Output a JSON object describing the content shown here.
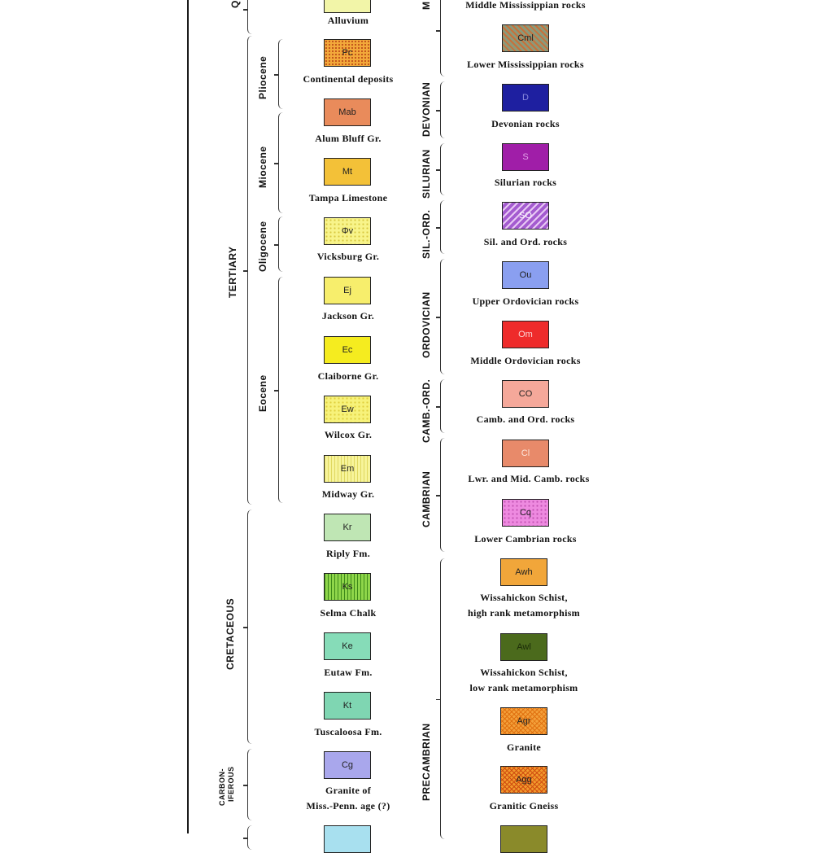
{
  "legend": {
    "units": [
      {
        "symbol": "",
        "name": "Alluvium",
        "fill": "#f2f5a8"
      },
      {
        "symbol": "Pc",
        "name": "Continental deposits",
        "fill": "#f2a83a"
      },
      {
        "symbol": "Mab",
        "name": "Alum Bluff Gr.",
        "fill": "#e98b5b"
      },
      {
        "symbol": "Mt",
        "name": "Tampa Limestone",
        "fill": "#f3c138"
      },
      {
        "symbol": "Φv",
        "name": "Vicksburg Gr.",
        "fill": "#f8f48a"
      },
      {
        "symbol": "Ej",
        "name": "Jackson Gr.",
        "fill": "#f7ee6c"
      },
      {
        "symbol": "Ec",
        "name": "Claiborne Gr.",
        "fill": "#f5ec1f"
      },
      {
        "symbol": "Ew",
        "name": "Wilcox Gr.",
        "fill": "#f7f27a"
      },
      {
        "symbol": "Em",
        "name": "Midway Gr.",
        "fill": "#f7f49a"
      },
      {
        "symbol": "Kr",
        "name": "Riply Fm.",
        "fill": "#bfe6b4"
      },
      {
        "symbol": "Ks",
        "name": "Selma Chalk",
        "fill": "#8fd64a"
      },
      {
        "symbol": "Ke",
        "name": "Eutaw Fm.",
        "fill": "#86dcb8"
      },
      {
        "symbol": "Kt",
        "name": "Tuscaloosa Fm.",
        "fill": "#7fd6b2"
      },
      {
        "symbol": "Cg",
        "name": "Granite of",
        "name2": "Miss.-Penn. age (?)",
        "fill": "#a9a7ec"
      },
      {
        "symbol": "",
        "name": "",
        "fill": "#a8e0ef"
      },
      {
        "symbol": "",
        "name": "Middle Mississippian rocks",
        "fill": ""
      },
      {
        "symbol": "Cml",
        "name": "Lower Mississippian rocks",
        "fill": "#8b9a7a"
      },
      {
        "symbol": "D",
        "name": "Devonian rocks",
        "fill": "#1e1fa0"
      },
      {
        "symbol": "S",
        "name": "Silurian rocks",
        "fill": "#a01ea8"
      },
      {
        "symbol": "SO",
        "name": "Sil. and Ord. rocks",
        "fill": "#a45bd0"
      },
      {
        "symbol": "Ou",
        "name": "Upper Ordovician rocks",
        "fill": "#8a9ff0"
      },
      {
        "symbol": "Om",
        "name": "Middle Ordovician rocks",
        "fill": "#ee2b2b"
      },
      {
        "symbol": "CO",
        "name": "Camb. and Ord. rocks",
        "fill": "#f5a89a"
      },
      {
        "symbol": "Cl",
        "name": "Lwr. and Mid. Camb. rocks",
        "fill": "#e88a6a"
      },
      {
        "symbol": "Cq",
        "name": "Lower Cambrian rocks",
        "fill": "#ee8ae0"
      },
      {
        "symbol": "Awh",
        "name": "Wissahickon Schist,",
        "name2": "high rank metamorphism",
        "fill": "#f1a63a"
      },
      {
        "symbol": "Awl",
        "name": "Wissahickon Schist,",
        "name2": "low rank metamorphism",
        "fill": "#4b6a1c"
      },
      {
        "symbol": "Agr",
        "name": "Granite",
        "fill": "#f3a03a"
      },
      {
        "symbol": "Agg",
        "name": "Granitic Gneiss",
        "fill": "#f19a2c"
      },
      {
        "symbol": "",
        "name": "",
        "fill": "#8a8a2a"
      }
    ],
    "periods": {
      "quaternary_cut": "Q",
      "tertiary": "TERTIARY",
      "cretaceous": "CRETACEOUS",
      "carboniferous": "CARBON-",
      "carboniferous2": "IFEROUS",
      "mississippian_cut": "M",
      "devonian": "DEVONIAN",
      "silurian": "SILURIAN",
      "sil_ord": "SIL.-ORD.",
      "ordovician": "ORDOVICIAN",
      "camb_ord": "CAMB.-ORD.",
      "cambrian": "CAMBRIAN",
      "precambrian": "PRECAMBRIAN"
    },
    "epochs": {
      "pliocene": "Pliocene",
      "miocene": "Miocene",
      "oligocene": "Oligocene",
      "eocene": "Eocene"
    }
  }
}
